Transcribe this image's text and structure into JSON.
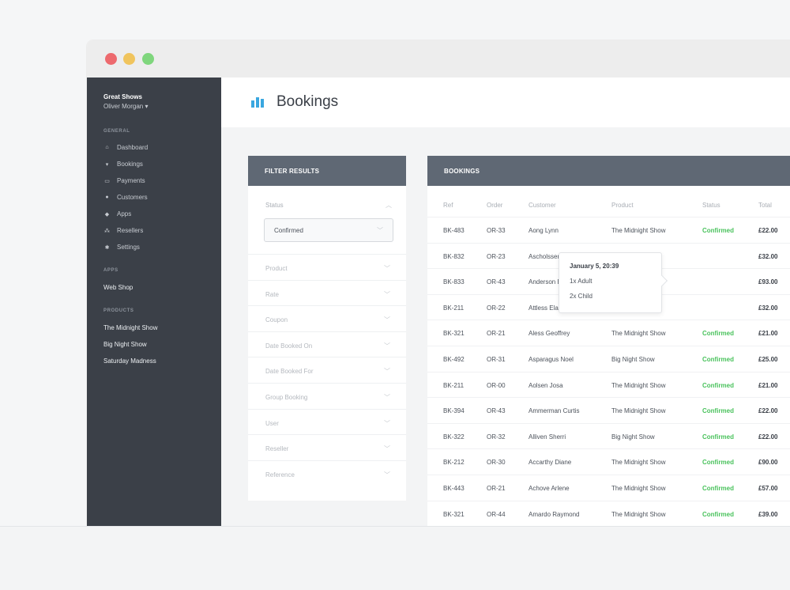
{
  "window": {
    "controls": [
      "close",
      "minimize",
      "maximize"
    ]
  },
  "sidebar": {
    "brand": "Great Shows",
    "user": "Oliver Morgan ▾",
    "general_heading": "GENERAL",
    "general_items": [
      {
        "label": "Dashboard",
        "icon": "home-icon"
      },
      {
        "label": "Bookings",
        "icon": "cart-icon"
      },
      {
        "label": "Payments",
        "icon": "card-icon"
      },
      {
        "label": "Customers",
        "icon": "users-icon"
      },
      {
        "label": "Apps",
        "icon": "box-icon"
      },
      {
        "label": "Resellers",
        "icon": "sitemap-icon"
      },
      {
        "label": "Settings",
        "icon": "gear-icon"
      }
    ],
    "apps_heading": "APPS",
    "apps_items": [
      "Web Shop"
    ],
    "products_heading": "PRODUCTS",
    "products_items": [
      "The Midnight Show",
      "Big Night Show",
      "Saturday Madness"
    ]
  },
  "header": {
    "title": "Bookings",
    "icon": "bar-chart-icon",
    "accent": "#3aa7e0"
  },
  "filter": {
    "heading": "FILTER RESULTS",
    "status_label": "Status",
    "status_value": "Confirmed",
    "rows": [
      "Product",
      "Rate",
      "Coupon",
      "Date Booked On",
      "Date Booked For",
      "Group Booking",
      "User",
      "Reseller",
      "Reference"
    ]
  },
  "bookings": {
    "heading": "BOOKINGS",
    "columns": [
      "Ref",
      "Order",
      "Customer",
      "Product",
      "Status",
      "Total"
    ],
    "rows": [
      {
        "ref": "BK-483",
        "order": "OR-33",
        "customer": "Aong Lynn",
        "product": "The Midnight Show",
        "status": "Confirmed",
        "total": "£22.00"
      },
      {
        "ref": "BK-832",
        "order": "OR-23",
        "customer": "Ascholssen Elena",
        "product": "The Midni",
        "status": "",
        "total": "£32.00"
      },
      {
        "ref": "BK-833",
        "order": "OR-43",
        "customer": "Anderson Ernesto",
        "product": "The Midni",
        "status": "",
        "total": "£93.00"
      },
      {
        "ref": "BK-211",
        "order": "OR-22",
        "customer": "Attless Elaine",
        "product": "The Midni",
        "status": "",
        "total": "£32.00"
      },
      {
        "ref": "BK-321",
        "order": "OR-21",
        "customer": "Aless Geoffrey",
        "product": "The Midnight Show",
        "status": "Confirmed",
        "total": "£21.00"
      },
      {
        "ref": "BK-492",
        "order": "OR-31",
        "customer": "Asparagus Noel",
        "product": "Big Night Show",
        "status": "Confirmed",
        "total": "£25.00"
      },
      {
        "ref": "BK-211",
        "order": "OR-00",
        "customer": "Aolsen Josa",
        "product": "The Midnight Show",
        "status": "Confirmed",
        "total": "£21.00"
      },
      {
        "ref": "BK-394",
        "order": "OR-43",
        "customer": "Ammerman Curtis",
        "product": "The Midnight Show",
        "status": "Confirmed",
        "total": "£22.00"
      },
      {
        "ref": "BK-322",
        "order": "OR-32",
        "customer": "Alliven Sherri",
        "product": "Big Night Show",
        "status": "Confirmed",
        "total": "£22.00"
      },
      {
        "ref": "BK-212",
        "order": "OR-30",
        "customer": "Accarthy Diane",
        "product": "The Midnight Show",
        "status": "Confirmed",
        "total": "£90.00"
      },
      {
        "ref": "BK-443",
        "order": "OR-21",
        "customer": "Achove Arlene",
        "product": "The Midnight Show",
        "status": "Confirmed",
        "total": "£57.00"
      },
      {
        "ref": "BK-321",
        "order": "OR-44",
        "customer": "Amardo Raymond",
        "product": "The Midnight Show",
        "status": "Confirmed",
        "total": "£39.00"
      }
    ]
  },
  "tooltip": {
    "date": "January 5, 20:39",
    "line1": "1x Adult",
    "line2": "2x Child"
  }
}
